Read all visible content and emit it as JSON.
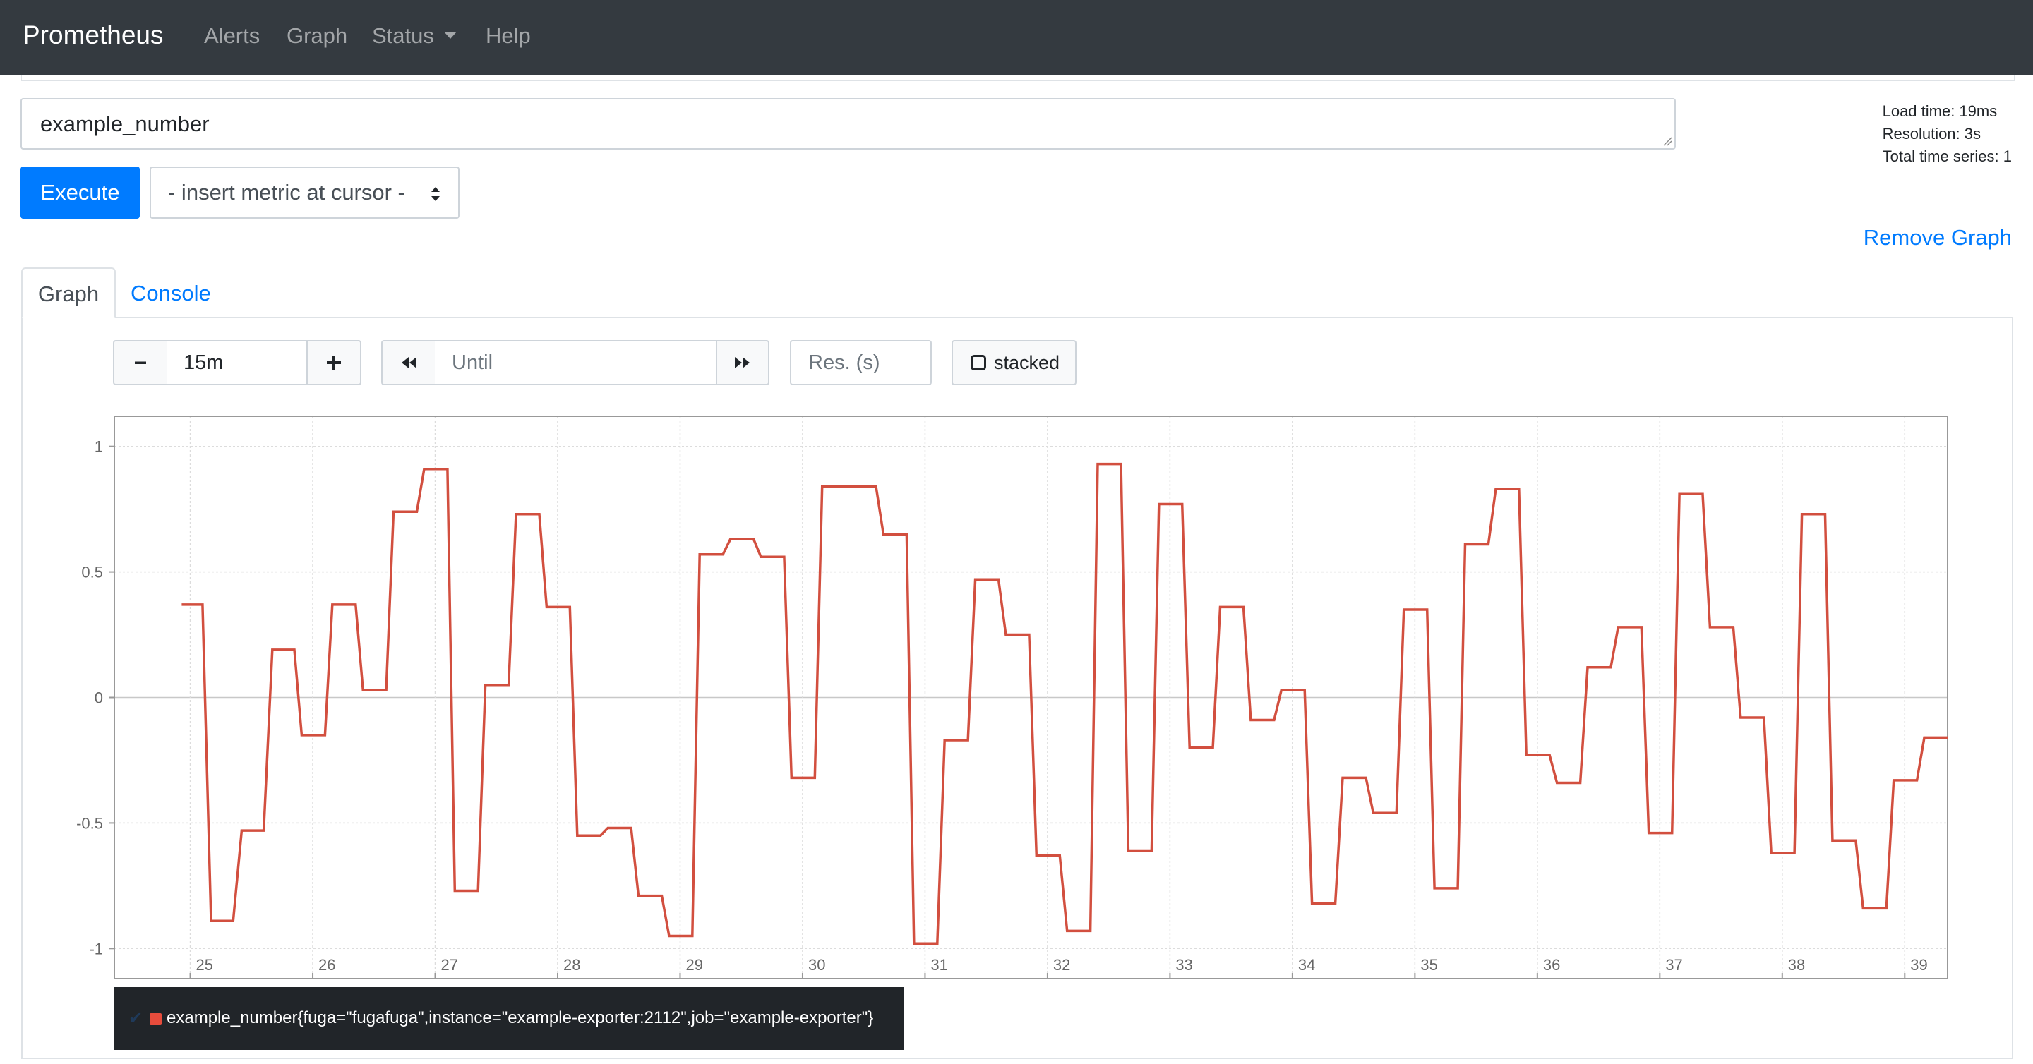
{
  "navbar": {
    "brand": "Prometheus",
    "items": [
      {
        "label": "Alerts"
      },
      {
        "label": "Graph"
      },
      {
        "label": "Status"
      },
      {
        "label": "Help"
      }
    ]
  },
  "query": {
    "expression": "example_number",
    "execute_label": "Execute",
    "metric_select": "- insert metric at cursor -",
    "stats": {
      "load_time": "Load time: 19ms",
      "resolution": "Resolution: 3s",
      "total_series": "Total time series: 1"
    },
    "remove_graph_label": "Remove Graph"
  },
  "tabs": [
    {
      "label": "Graph",
      "active": true
    },
    {
      "label": "Console",
      "active": false
    }
  ],
  "graph_controls": {
    "range_minus": "minus-icon",
    "range_value": "15m",
    "range_plus": "plus-icon",
    "back_icon": "fast-backward-icon",
    "until_placeholder": "Until",
    "forward_icon": "fast-forward-icon",
    "resolution_placeholder": "Res. (s)",
    "stacked_label": "stacked"
  },
  "colors": {
    "navbar": "#343a40",
    "primary": "#007bff",
    "series": "#d24f3f",
    "legend_bg": "#212529"
  },
  "chart_data": {
    "type": "line",
    "step": true,
    "x_ticks": [
      "25",
      "26",
      "27",
      "28",
      "29",
      "30",
      "31",
      "32",
      "33",
      "34",
      "35",
      "36",
      "37",
      "38",
      "39"
    ],
    "y_ticks": [
      "1",
      "0.5",
      "0",
      "-0.5",
      "-1"
    ],
    "ylim": [
      -1.12,
      1.12
    ],
    "xlim": [
      24.38,
      39.35
    ],
    "grid": true,
    "legend_position": "bottom-left",
    "series": [
      {
        "name": "example_number{fuga=\"fugafuga\",instance=\"example-exporter:2112\",job=\"example-exporter\"}",
        "points": [
          [
            24.93,
            0.37
          ],
          [
            25.1,
            0.37
          ],
          [
            25.17,
            -0.89
          ],
          [
            25.35,
            -0.89
          ],
          [
            25.42,
            -0.53
          ],
          [
            25.6,
            -0.53
          ],
          [
            25.67,
            0.19
          ],
          [
            25.85,
            0.19
          ],
          [
            25.91,
            -0.15
          ],
          [
            26.1,
            -0.15
          ],
          [
            26.16,
            0.37
          ],
          [
            26.35,
            0.37
          ],
          [
            26.41,
            0.03
          ],
          [
            26.6,
            0.03
          ],
          [
            26.66,
            0.74
          ],
          [
            26.85,
            0.74
          ],
          [
            26.91,
            0.91
          ],
          [
            27.1,
            0.91
          ],
          [
            27.16,
            -0.77
          ],
          [
            27.35,
            -0.77
          ],
          [
            27.41,
            0.05
          ],
          [
            27.6,
            0.05
          ],
          [
            27.66,
            0.73
          ],
          [
            27.85,
            0.73
          ],
          [
            27.91,
            0.36
          ],
          [
            28.1,
            0.36
          ],
          [
            28.16,
            -0.55
          ],
          [
            28.35,
            -0.55
          ],
          [
            28.41,
            -0.52
          ],
          [
            28.6,
            -0.52
          ],
          [
            28.66,
            -0.79
          ],
          [
            28.85,
            -0.79
          ],
          [
            28.91,
            -0.95
          ],
          [
            29.1,
            -0.95
          ],
          [
            29.16,
            0.57
          ],
          [
            29.35,
            0.57
          ],
          [
            29.41,
            0.63
          ],
          [
            29.6,
            0.63
          ],
          [
            29.66,
            0.56
          ],
          [
            29.85,
            0.56
          ],
          [
            29.91,
            -0.32
          ],
          [
            30.1,
            -0.32
          ],
          [
            30.16,
            0.84
          ],
          [
            30.35,
            0.84
          ],
          [
            30.41,
            0.84
          ],
          [
            30.6,
            0.84
          ],
          [
            30.66,
            0.65
          ],
          [
            30.85,
            0.65
          ],
          [
            30.91,
            -0.98
          ],
          [
            31.1,
            -0.98
          ],
          [
            31.16,
            -0.17
          ],
          [
            31.35,
            -0.17
          ],
          [
            31.41,
            0.47
          ],
          [
            31.6,
            0.47
          ],
          [
            31.66,
            0.25
          ],
          [
            31.85,
            0.25
          ],
          [
            31.91,
            -0.63
          ],
          [
            32.1,
            -0.63
          ],
          [
            32.16,
            -0.93
          ],
          [
            32.35,
            -0.93
          ],
          [
            32.41,
            0.93
          ],
          [
            32.6,
            0.93
          ],
          [
            32.66,
            -0.61
          ],
          [
            32.85,
            -0.61
          ],
          [
            32.91,
            0.77
          ],
          [
            33.1,
            0.77
          ],
          [
            33.16,
            -0.2
          ],
          [
            33.35,
            -0.2
          ],
          [
            33.41,
            0.36
          ],
          [
            33.6,
            0.36
          ],
          [
            33.66,
            -0.09
          ],
          [
            33.85,
            -0.09
          ],
          [
            33.91,
            0.03
          ],
          [
            34.1,
            0.03
          ],
          [
            34.16,
            -0.82
          ],
          [
            34.35,
            -0.82
          ],
          [
            34.41,
            -0.32
          ],
          [
            34.6,
            -0.32
          ],
          [
            34.66,
            -0.46
          ],
          [
            34.85,
            -0.46
          ],
          [
            34.91,
            0.35
          ],
          [
            35.1,
            0.35
          ],
          [
            35.16,
            -0.76
          ],
          [
            35.35,
            -0.76
          ],
          [
            35.41,
            0.61
          ],
          [
            35.6,
            0.61
          ],
          [
            35.66,
            0.83
          ],
          [
            35.85,
            0.83
          ],
          [
            35.91,
            -0.23
          ],
          [
            36.1,
            -0.23
          ],
          [
            36.16,
            -0.34
          ],
          [
            36.35,
            -0.34
          ],
          [
            36.41,
            0.12
          ],
          [
            36.6,
            0.12
          ],
          [
            36.66,
            0.28
          ],
          [
            36.85,
            0.28
          ],
          [
            36.91,
            -0.54
          ],
          [
            37.1,
            -0.54
          ],
          [
            37.16,
            0.81
          ],
          [
            37.35,
            0.81
          ],
          [
            37.41,
            0.28
          ],
          [
            37.6,
            0.28
          ],
          [
            37.66,
            -0.08
          ],
          [
            37.85,
            -0.08
          ],
          [
            37.91,
            -0.62
          ],
          [
            38.1,
            -0.62
          ],
          [
            38.16,
            0.73
          ],
          [
            38.35,
            0.73
          ],
          [
            38.41,
            -0.57
          ],
          [
            38.6,
            -0.57
          ],
          [
            38.66,
            -0.84
          ],
          [
            38.85,
            -0.84
          ],
          [
            38.91,
            -0.33
          ],
          [
            39.1,
            -0.33
          ],
          [
            39.16,
            -0.16
          ],
          [
            39.35,
            -0.16
          ]
        ]
      }
    ]
  }
}
